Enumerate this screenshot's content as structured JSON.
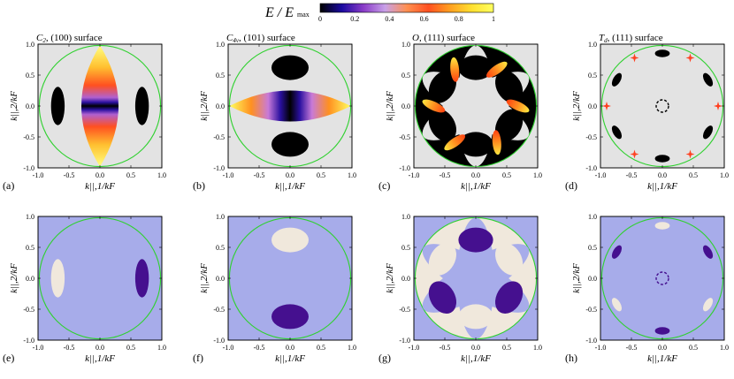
{
  "colorbar": {
    "label": "E / E",
    "label_sub": "max",
    "ticks": [
      "0",
      "0.2",
      "0.4",
      "0.6",
      "0.8",
      "1"
    ],
    "stops": [
      "#000000",
      "#1a0aa0",
      "#8a3cc8",
      "#c8a0e8",
      "#ff9050",
      "#ff5020",
      "#ffa020",
      "#ffe030",
      "#ffff60"
    ]
  },
  "colors": {
    "outer_bg_top": "#e3e3e3",
    "outer_bg_bottom": "#a7acea",
    "circle": "#2fd12f",
    "black_region": "#000000",
    "light_region": "#f0e8dc",
    "dark_region": "#45108f"
  },
  "chart_data": [
    {
      "type": "heatmap",
      "panel": "(a)",
      "title": "C2, (100) surface",
      "title_sym": "C",
      "title_symsub": "2",
      "title_rest": ", (100) surface",
      "xlabel": "k||,1/kF",
      "ylabel": "k||,2/kF",
      "xlim": [
        -1.0,
        1.0
      ],
      "ylim": [
        -1.0,
        1.0
      ],
      "xticks": [
        "-1.0",
        "-0.5",
        "0.0",
        "0.5",
        "1.0"
      ],
      "yticks": [
        "1.0",
        "0.5",
        "0.0",
        "-0.5",
        "-1.0"
      ],
      "variable": "E/Emax"
    },
    {
      "type": "heatmap",
      "panel": "(b)",
      "title": "C4v, (101) surface",
      "title_sym": "C",
      "title_symsub": "4v",
      "title_rest": ", (101) surface",
      "xlabel": "k||,1/kF",
      "ylabel": "k||,2/kF",
      "xlim": [
        -1.0,
        1.0
      ],
      "ylim": [
        -1.0,
        1.0
      ],
      "xticks": [
        "-1.0",
        "-0.5",
        "0.0",
        "0.5",
        "1.0"
      ],
      "yticks": [
        "1.0",
        "0.5",
        "0.0",
        "-0.5",
        "-1.0"
      ],
      "variable": "E/Emax"
    },
    {
      "type": "heatmap",
      "panel": "(c)",
      "title": "O, (111) surface",
      "title_sym": "O",
      "title_symsub": "",
      "title_rest": ", (111) surface",
      "xlabel": "k||,1/kF",
      "ylabel": "k||,2/kF",
      "xlim": [
        -1.0,
        1.0
      ],
      "ylim": [
        -1.0,
        1.0
      ],
      "xticks": [
        "-1.0",
        "-0.5",
        "0.0",
        "0.5",
        "1.0"
      ],
      "yticks": [
        "1.0",
        "0.5",
        "0.0",
        "-0.5",
        "-1.0"
      ],
      "variable": "E/Emax"
    },
    {
      "type": "heatmap",
      "panel": "(d)",
      "title": "Td, (111) surface",
      "title_sym": "T",
      "title_symsub": "d",
      "title_rest": ", (111) surface",
      "xlabel": "k||,1/kF",
      "ylabel": "k||,2/kF",
      "xlim": [
        -1.0,
        1.0
      ],
      "ylim": [
        -1.0,
        1.0
      ],
      "xticks": [
        "-1.0",
        "-0.5",
        "0.0",
        "0.5",
        "1.0"
      ],
      "yticks": [
        "1.0",
        "0.5",
        "0.0",
        "-0.5",
        "-1.0"
      ],
      "variable": "E/Emax"
    },
    {
      "type": "heatmap",
      "panel": "(e)",
      "xlabel": "k||,1/kF",
      "ylabel": "k||,2/kF",
      "xlim": [
        -1.0,
        1.0
      ],
      "ylim": [
        -1.0,
        1.0
      ],
      "xticks": [
        "-1.0",
        "-0.5",
        "0.0",
        "0.5",
        "1.0"
      ],
      "yticks": [
        "1.0",
        "0.5",
        "0.0",
        "-0.5",
        "-1.0"
      ]
    },
    {
      "type": "heatmap",
      "panel": "(f)",
      "xlabel": "k||,1/kF",
      "ylabel": "k||,2/kF",
      "xlim": [
        -1.0,
        1.0
      ],
      "ylim": [
        -1.0,
        1.0
      ],
      "xticks": [
        "-1.0",
        "-0.5",
        "0.0",
        "0.5",
        "1.0"
      ],
      "yticks": [
        "1.0",
        "0.5",
        "0.0",
        "-0.5",
        "-1.0"
      ]
    },
    {
      "type": "heatmap",
      "panel": "(g)",
      "xlabel": "k||,1/kF",
      "ylabel": "k||,2/kF",
      "xlim": [
        -1.0,
        1.0
      ],
      "ylim": [
        -1.0,
        1.0
      ],
      "xticks": [
        "-1.0",
        "-0.5",
        "0.0",
        "0.5",
        "1.0"
      ],
      "yticks": [
        "1.0",
        "0.5",
        "0.0",
        "-0.5",
        "-1.0"
      ]
    },
    {
      "type": "heatmap",
      "panel": "(h)",
      "xlabel": "k||,1/kF",
      "ylabel": "k||,2/kF",
      "xlim": [
        -1.0,
        1.0
      ],
      "ylim": [
        -1.0,
        1.0
      ],
      "xticks": [
        "-1.0",
        "-0.5",
        "0.0",
        "0.5",
        "1.0"
      ],
      "yticks": [
        "1.0",
        "0.5",
        "0.0",
        "-0.5",
        "-1.0"
      ]
    }
  ]
}
